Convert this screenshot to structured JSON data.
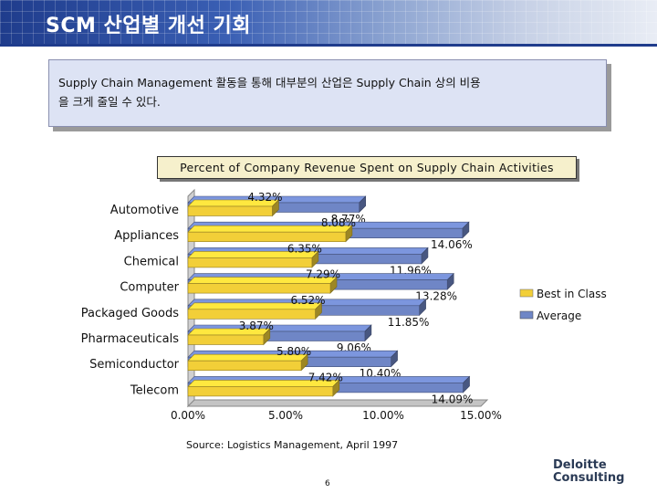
{
  "header": {
    "title": "SCM 산업별 개선 기회"
  },
  "callout": {
    "text_line1": "Supply Chain Management 활동을 통해 대부분의 산업은 Supply Chain 상의 비용",
    "text_line2": "을 크게 줄일 수 있다."
  },
  "chart_data": {
    "type": "bar",
    "title": "Percent of Company Revenue Spent on Supply Chain Activities",
    "categories": [
      "Automotive",
      "Appliances",
      "Chemical",
      "Computer",
      "Packaged Goods",
      "Pharmaceuticals",
      "Semiconductor",
      "Telecom"
    ],
    "series": [
      {
        "name": "Best in Class",
        "values": [
          4.32,
          8.08,
          6.35,
          7.29,
          6.52,
          3.87,
          5.8,
          7.42
        ],
        "labels": [
          "4.32%",
          "8.08%",
          "6.35%",
          "7.29%",
          "6.52%",
          "3.87%",
          "5.80%",
          "7.42%"
        ]
      },
      {
        "name": "Average",
        "values": [
          8.77,
          14.06,
          11.96,
          13.28,
          11.85,
          9.06,
          10.4,
          14.09
        ],
        "labels": [
          "8.77%",
          "14.06%",
          "11.96%",
          "13.28%",
          "11.85%",
          "9.06%",
          "10.40%",
          "14.09%"
        ]
      }
    ],
    "xlim": [
      0,
      15
    ],
    "xticks": [
      0,
      5,
      10,
      15
    ],
    "xtick_labels": [
      "0.00%",
      "5.00%",
      "10.00%",
      "15.00%"
    ],
    "legend_position": "right",
    "colors": {
      "best": "#f2cf38",
      "average": "#6f86c6"
    }
  },
  "source": "Source: Logistics Management, April 1997",
  "page_number": "6",
  "logo": {
    "line1": "Deloitte",
    "line2": "Consulting"
  }
}
